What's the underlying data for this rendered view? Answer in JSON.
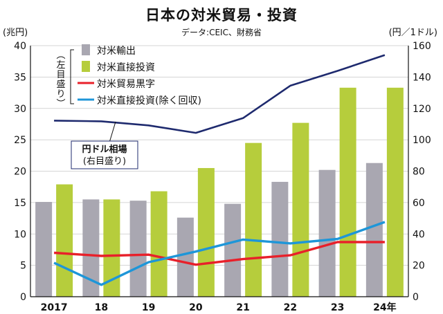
{
  "chart_data": {
    "type": "bar+line",
    "title": "日本の対米貿易・投資",
    "source": "データ:CEIC、財務省",
    "y_left": {
      "unit_label": "(兆円)",
      "ylim": [
        0,
        40
      ],
      "ticks": [
        0,
        5,
        10,
        15,
        20,
        25,
        30,
        35,
        40
      ]
    },
    "y_right": {
      "unit_label": "(円／1ドル)",
      "ylim": [
        0,
        160
      ],
      "ticks": [
        0,
        20,
        40,
        60,
        80,
        100,
        120,
        140,
        160
      ]
    },
    "categories": [
      "2017",
      "18",
      "19",
      "20",
      "21",
      "22",
      "23",
      "24年"
    ],
    "left_axis_note": "(左目盛り)",
    "series": [
      {
        "name": "対米輸出",
        "type": "bar",
        "axis": "left",
        "color": "#a9a7b1",
        "values": [
          15.1,
          15.5,
          15.3,
          12.6,
          14.8,
          18.3,
          20.2,
          21.3
        ]
      },
      {
        "name": "対米直接投資",
        "type": "bar",
        "axis": "left",
        "color": "#b6cd3c",
        "values": [
          17.9,
          15.5,
          16.8,
          20.5,
          24.5,
          27.7,
          33.3,
          33.3
        ]
      },
      {
        "name": "対米貿易黒字",
        "type": "line",
        "axis": "left",
        "color": "#e8202a",
        "values": [
          7.0,
          6.5,
          6.7,
          5.1,
          6.0,
          6.6,
          8.7,
          8.7
        ]
      },
      {
        "name": "対米直接投資(除く回収)",
        "type": "line",
        "axis": "left",
        "color": "#1e96d8",
        "values": [
          5.4,
          1.9,
          5.5,
          7.2,
          9.1,
          8.5,
          9.2,
          11.9
        ]
      },
      {
        "name": "円ドル相場",
        "type": "line",
        "axis": "right",
        "color": "#1e2a6e",
        "values": [
          112.2,
          111.8,
          109.2,
          104.4,
          113.8,
          134.5,
          143.9,
          154.0
        ]
      }
    ],
    "annotations": [
      {
        "text": "円ドル相場",
        "sub": "(右目盛り)"
      }
    ]
  }
}
